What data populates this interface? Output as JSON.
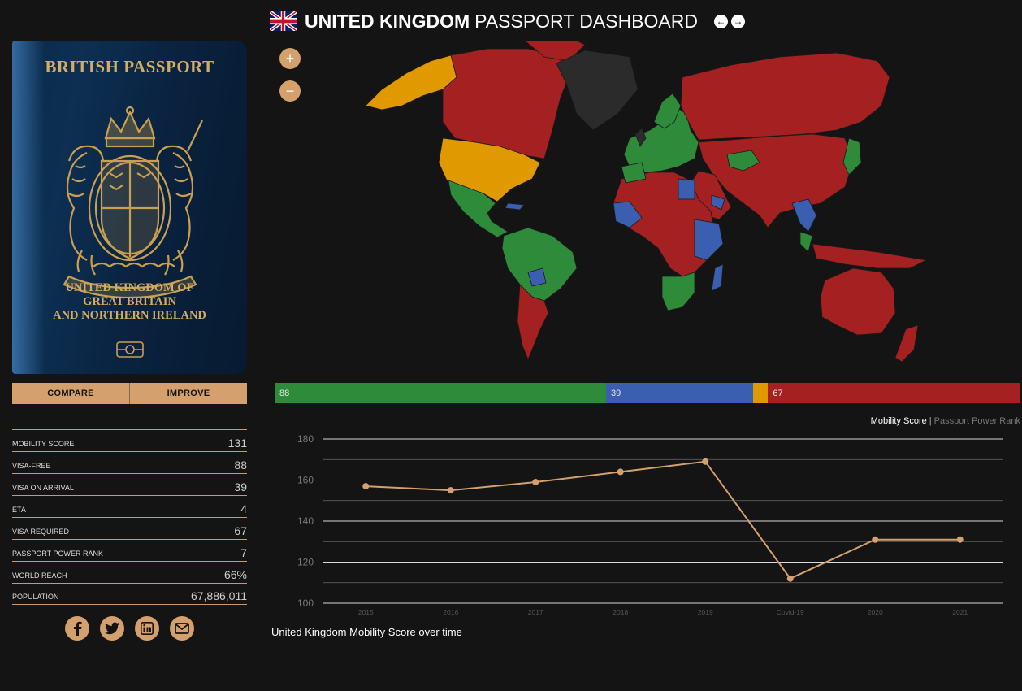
{
  "header": {
    "title_bold": "UNITED KINGDOM",
    "title_light": "PASSPORT DASHBOARD",
    "flag_icon": "uk-flag-icon",
    "prev_icon": "arrow-left-icon",
    "next_icon": "arrow-right-icon"
  },
  "passport": {
    "title": "BRITISH PASSPORT",
    "country_line1": "UNITED KINGDOM OF",
    "country_line2": "GREAT BRITAIN",
    "country_line3": "AND NORTHERN IRELAND",
    "cover_color": "#0d2f52",
    "ink_color": "#d4ac63"
  },
  "buttons": {
    "compare": "COMPARE",
    "improve": "IMPROVE"
  },
  "stats": [
    {
      "label": "MOBILITY SCORE",
      "value": "131"
    },
    {
      "label": "VISA-FREE",
      "value": "88"
    },
    {
      "label": "VISA ON ARRIVAL",
      "value": "39"
    },
    {
      "label": "ETA",
      "value": "4"
    },
    {
      "label": "VISA REQUIRED",
      "value": "67"
    },
    {
      "label": "PASSPORT POWER RANK",
      "value": "7"
    },
    {
      "label": "WORLD REACH",
      "value": "66%"
    },
    {
      "label": "POPULATION",
      "value": "67,886,011"
    }
  ],
  "social": [
    "facebook-icon",
    "twitter-icon",
    "linkedin-icon",
    "email-icon"
  ],
  "map": {
    "zoom_in": "+",
    "zoom_out": "−",
    "legend_colors": {
      "visa_free": "#2e8b3a",
      "visa_on_arrival": "#3a5fb0",
      "eta": "#e09a00",
      "visa_required": "#a52121",
      "home": "#2b2b2b"
    }
  },
  "distribution": [
    {
      "key": "visa_free",
      "value": 88,
      "label": "88",
      "color": "#2e8b3a"
    },
    {
      "key": "visa_on_arrival",
      "value": 39,
      "label": "39",
      "color": "#3a5fb0"
    },
    {
      "key": "eta",
      "value": 4,
      "label": "",
      "color": "#e09a00"
    },
    {
      "key": "visa_required",
      "value": 67,
      "label": "67",
      "color": "#a52121"
    }
  ],
  "chart_toggle": {
    "active": "Mobility Score",
    "separator": "|",
    "inactive": "Passport Power Rank"
  },
  "chart_caption": "United Kingdom Mobility Score over time",
  "chart_data": {
    "type": "line",
    "categories": [
      "2015",
      "2016",
      "2017",
      "2018",
      "2019",
      "Covid-19",
      "2020",
      "2021"
    ],
    "series": [
      {
        "values": [
          157,
          155,
          159,
          164,
          169,
          112,
          131,
          131
        ]
      }
    ],
    "yticks": [
      100,
      120,
      140,
      160,
      180
    ],
    "ylim": [
      100,
      180
    ],
    "line_color": "#d4a06d",
    "grid": true
  }
}
